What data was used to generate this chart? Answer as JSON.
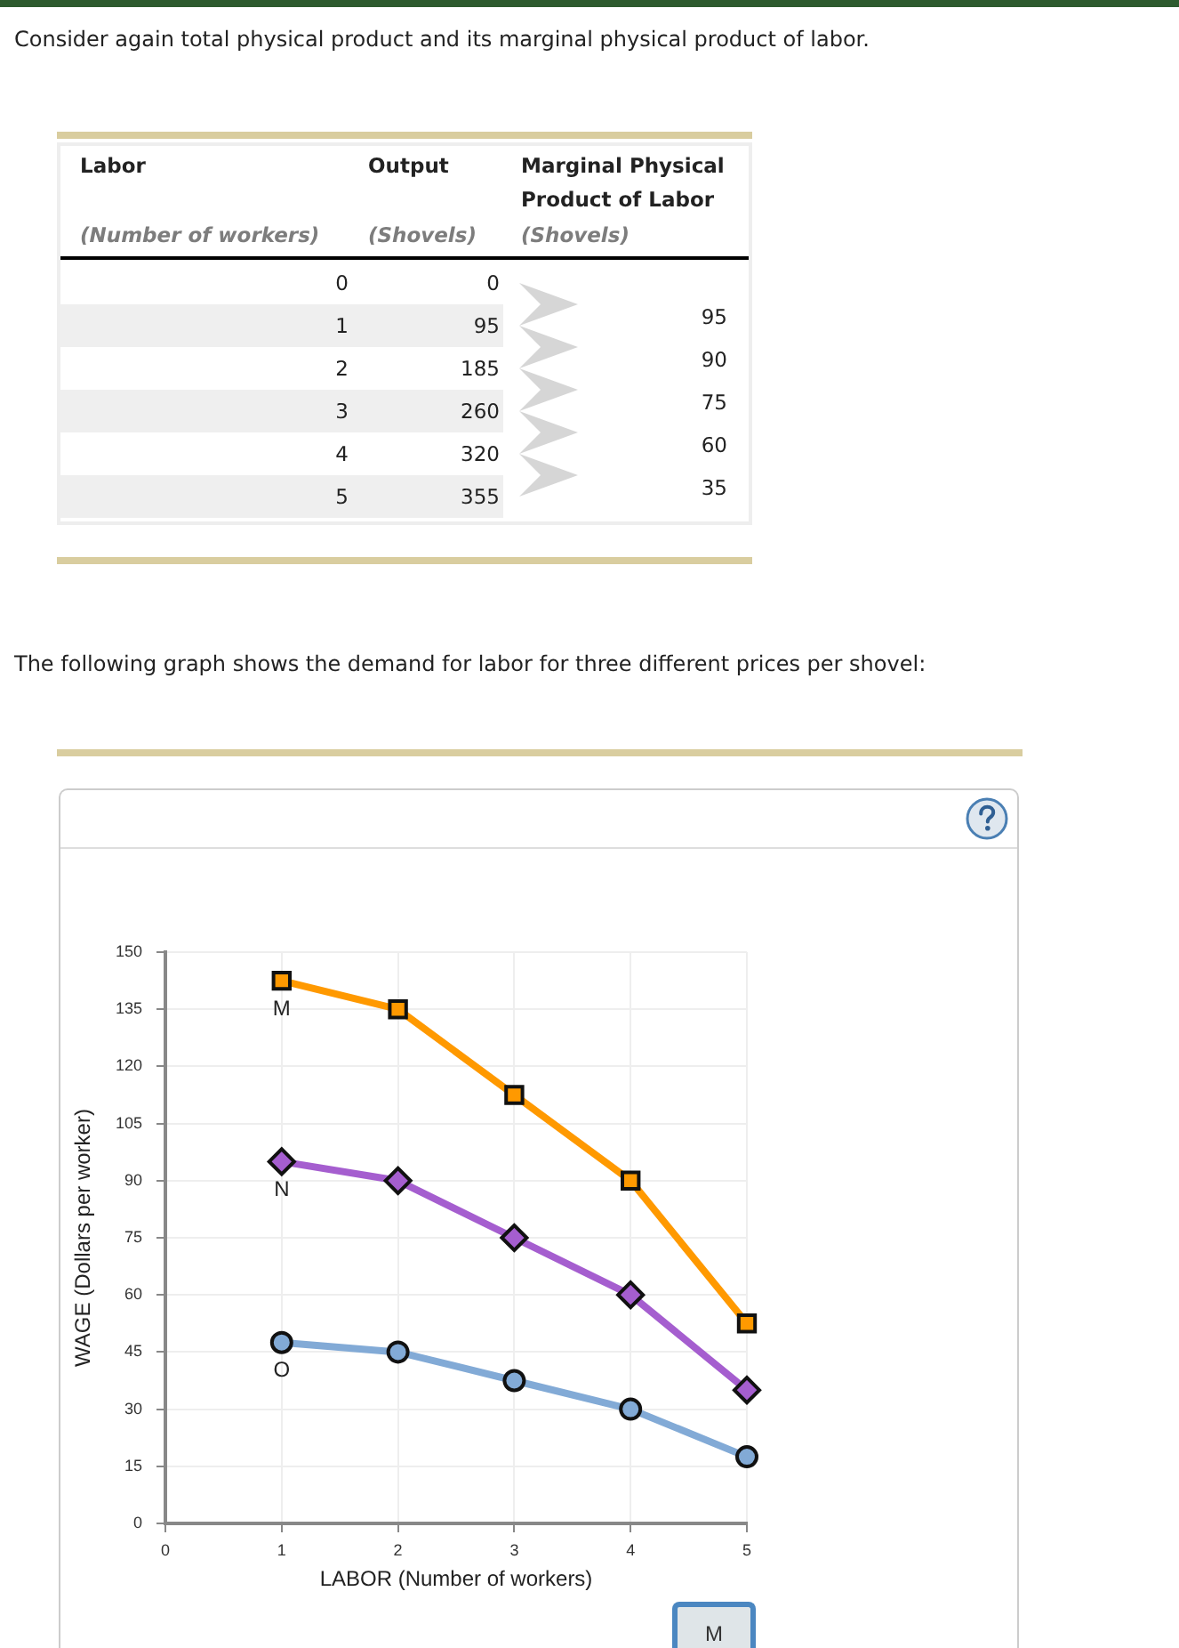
{
  "chart_data": [
    {
      "type": "heatmap",
      "title": "Consider again total physical product and its marginal physical product of labor.",
      "annotations": [
        "Labor",
        "(Number of workers)",
        "(Shovels)",
        "(Shovels)"
      ],
      "categories": [
        "Output",
        "Marginal Physical Product of Labor"
      ],
      "y_categories": [
        "0",
        "1",
        "2",
        "3",
        "4",
        "5"
      ],
      "cells": [
        [
          0,
          null
        ],
        [
          95,
          95
        ],
        [
          185,
          90
        ],
        [
          260,
          75
        ],
        [
          320,
          60
        ],
        [
          355,
          35
        ]
      ],
      "data_labels": true,
      "bands": [
        {
          "axis": "y",
          "from": "1",
          "to": "1",
          "color": "#efefef"
        },
        {
          "axis": "y",
          "from": "3",
          "to": "3",
          "color": "#efefef"
        },
        {
          "axis": "y",
          "from": "5",
          "to": "5",
          "color": "#efefef"
        }
      ]
    },
    {
      "type": "line",
      "title": "The following graph shows the demand for labor for three different prices per shovel:",
      "xlabel": "LABOR (Number of workers)",
      "ylabel": "WAGE (Dollars per worker)",
      "x": [
        1,
        2,
        3,
        4,
        5
      ],
      "xlim": [
        0,
        5
      ],
      "xticks": [
        0,
        1,
        2,
        3,
        4,
        5
      ],
      "ylim": [
        0,
        150
      ],
      "yticks": [
        0,
        15,
        30,
        45,
        60,
        75,
        90,
        105,
        120,
        135,
        150
      ],
      "grid": true,
      "annotations": [
        "M"
      ],
      "series": [
        {
          "name": "M",
          "color": "#ff9900",
          "marker": "square",
          "values": [
            142.5,
            135,
            112.5,
            90,
            52.5
          ]
        },
        {
          "name": "N",
          "color": "#a55ecf",
          "marker": "diamond",
          "values": [
            95,
            90,
            75,
            60,
            35
          ]
        },
        {
          "name": "O",
          "color": "#82aad6",
          "marker": "circle",
          "values": [
            47.5,
            45,
            37.5,
            30,
            17.5
          ]
        }
      ]
    }
  ]
}
